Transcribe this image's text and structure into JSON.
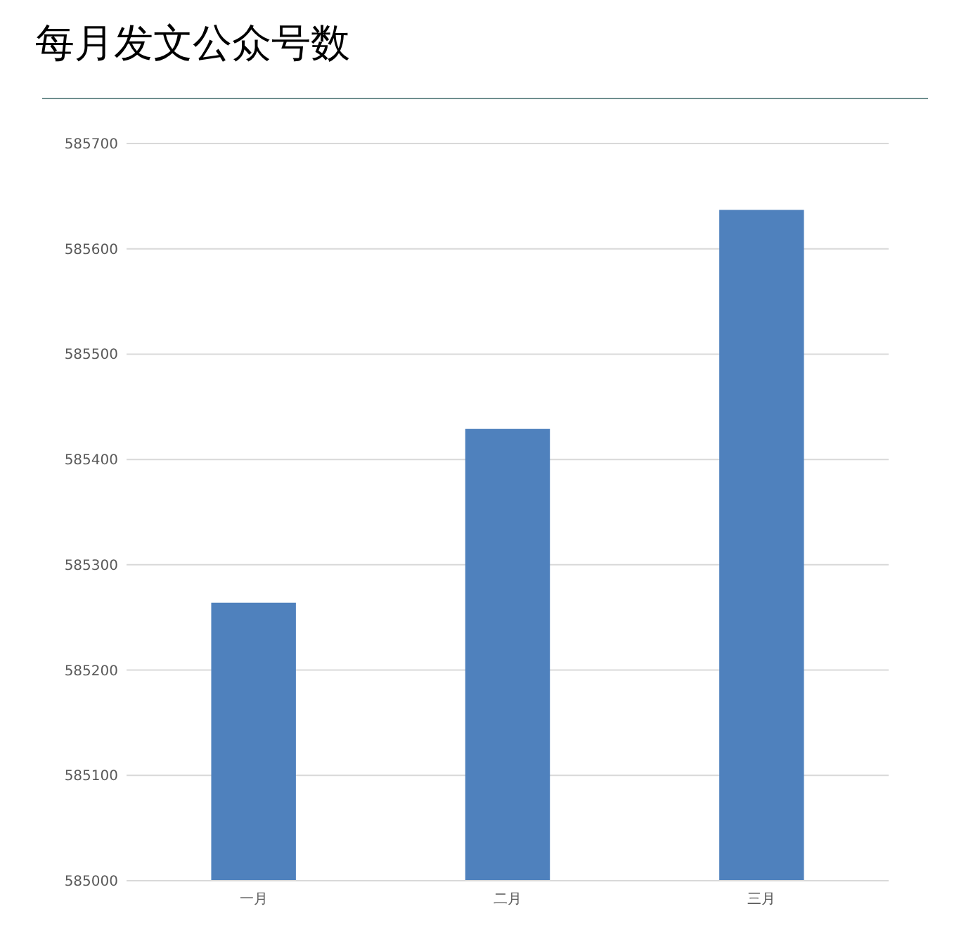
{
  "chart_data": {
    "type": "bar",
    "title": "每月发文公众号数",
    "categories": [
      "一月",
      "二月",
      "三月"
    ],
    "values": [
      585264,
      585429,
      585637
    ],
    "color": "#4f81bd",
    "ylim": [
      585000,
      585700
    ],
    "yticks": [
      585000,
      585100,
      585200,
      585300,
      585400,
      585500,
      585600,
      585700
    ],
    "grid": "y"
  }
}
